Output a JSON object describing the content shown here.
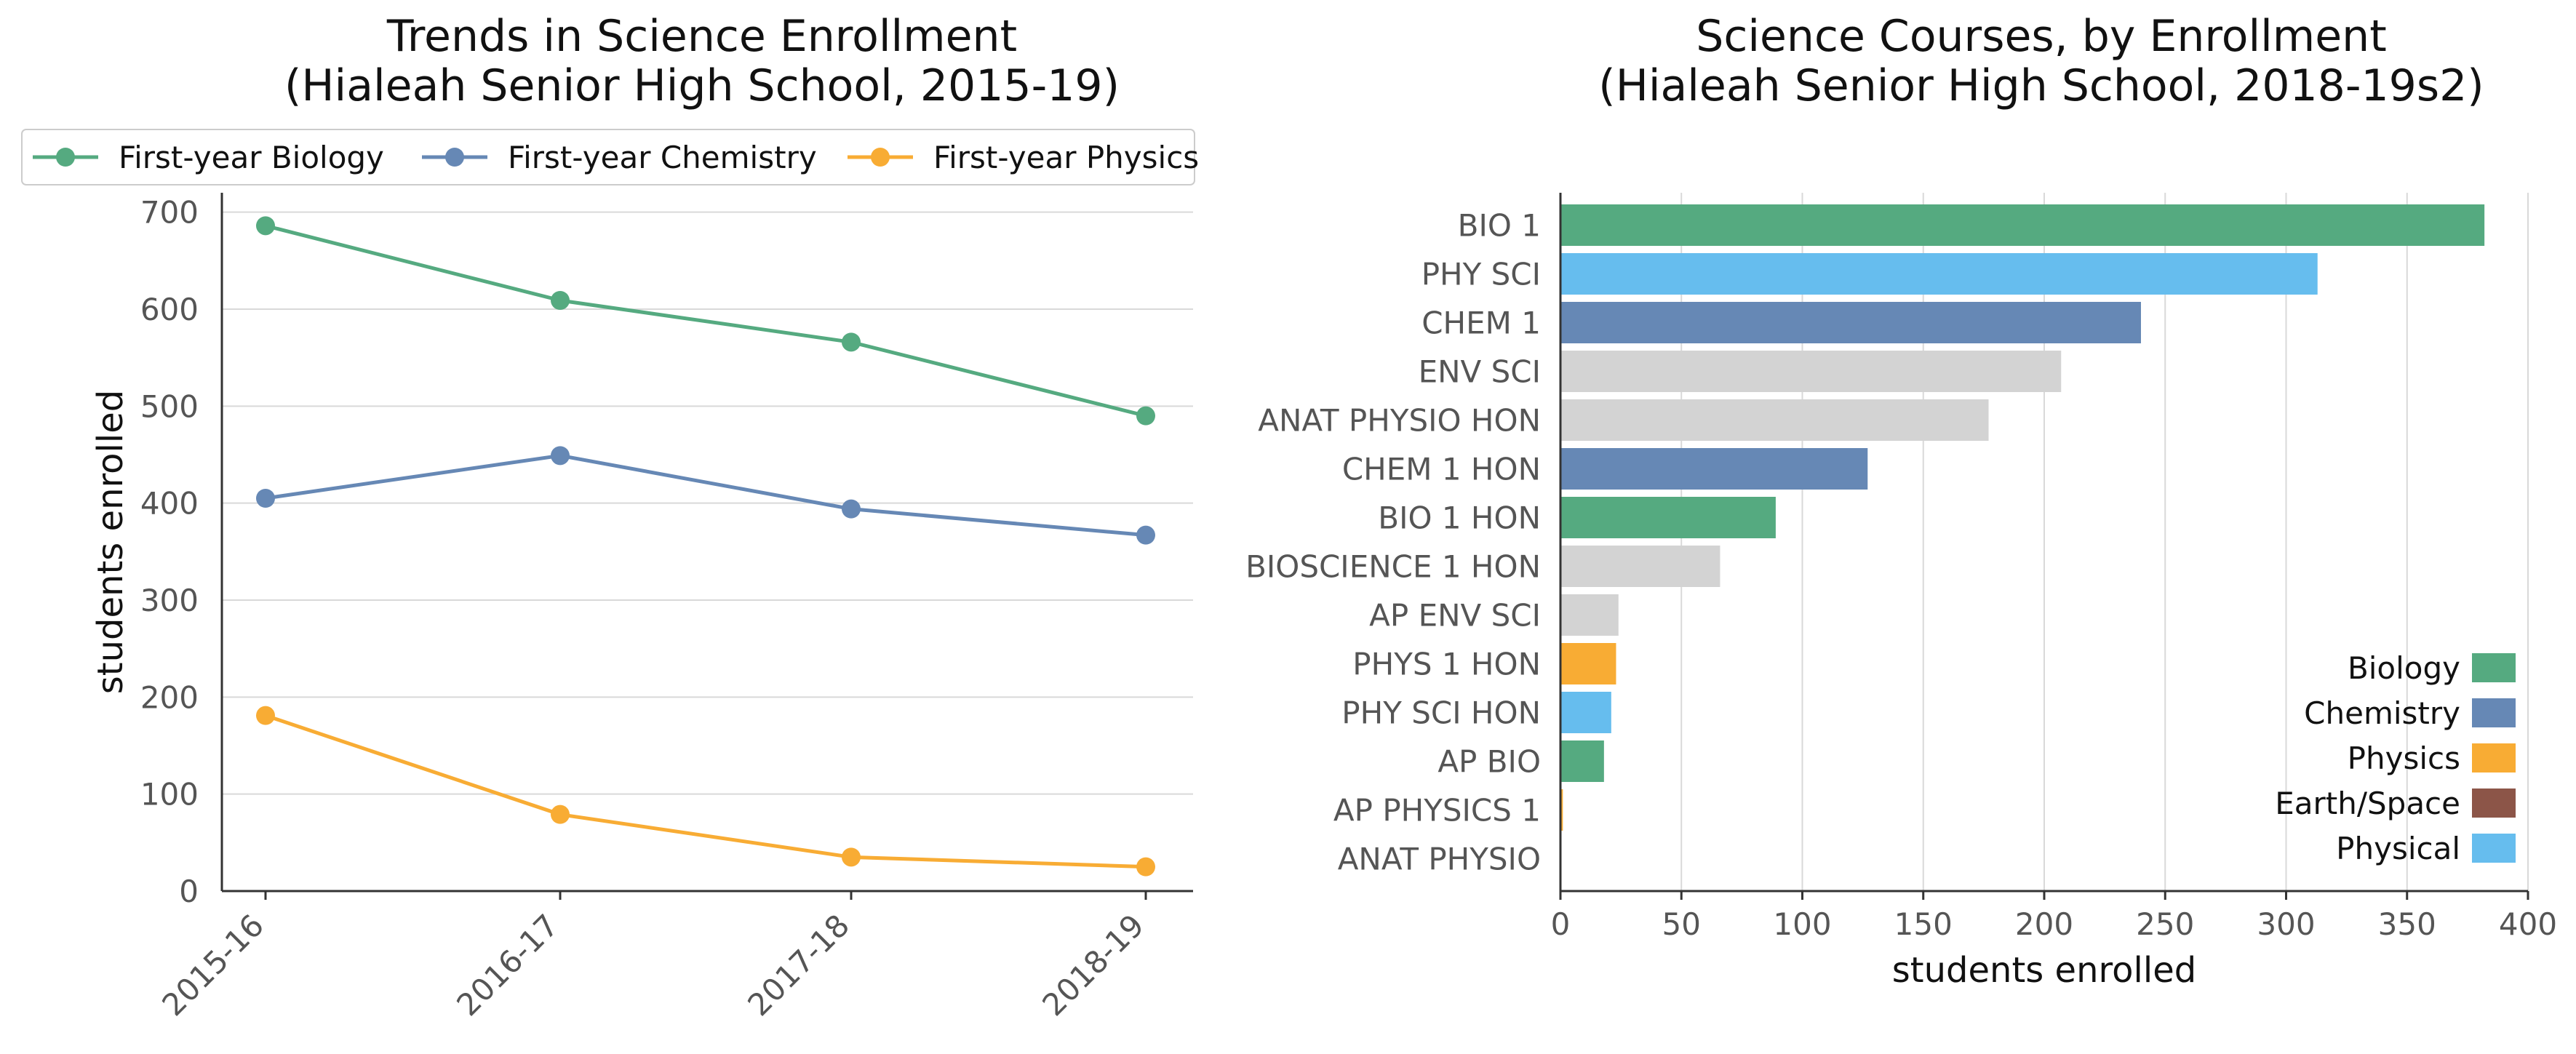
{
  "chart_data": [
    {
      "type": "line",
      "title": "Trends in Science Enrollment",
      "subtitle": "(Hialeah Senior High School, 2015-19)",
      "xlabel": "",
      "ylabel": "students enrolled",
      "categories": [
        "2015-16",
        "2016-17",
        "2017-18",
        "2018-19"
      ],
      "ylim": [
        0,
        720
      ],
      "yticks": [
        0,
        100,
        200,
        300,
        400,
        500,
        600,
        700
      ],
      "grid": "horizontal",
      "legend": "top",
      "series": [
        {
          "name": "First-year Biology",
          "color": "#55AA80",
          "values": [
            686,
            609,
            566,
            490
          ]
        },
        {
          "name": "First-year Chemistry",
          "color": "#6688B5",
          "values": [
            405,
            449,
            394,
            367
          ]
        },
        {
          "name": "First-year Physics",
          "color": "#F8AC34",
          "values": [
            181,
            79,
            35,
            25
          ]
        }
      ]
    },
    {
      "type": "bar",
      "orientation": "horizontal",
      "title": "Science Courses, by Enrollment",
      "subtitle": "(Hialeah Senior High School, 2018-19s2)",
      "xlabel": "students enrolled",
      "ylabel": "",
      "xlim": [
        0,
        400
      ],
      "xticks": [
        0,
        50,
        100,
        150,
        200,
        250,
        300,
        350,
        400
      ],
      "grid": "vertical",
      "legend": "bottom-right",
      "categories": [
        "BIO 1",
        "PHY SCI",
        "CHEM 1",
        "ENV SCI",
        "ANAT PHYSIO HON",
        "CHEM 1 HON",
        "BIO 1 HON",
        "BIOSCIENCE 1 HON",
        "AP ENV SCI",
        "PHYS 1 HON",
        "PHY SCI HON",
        "AP BIO",
        "AP PHYSICS 1",
        "ANAT PHYSIO"
      ],
      "values": [
        382,
        313,
        240,
        207,
        177,
        127,
        89,
        66,
        24,
        23,
        21,
        18,
        1,
        0
      ],
      "bar_groups": [
        "Biology",
        "Physical",
        "Chemistry",
        "",
        "",
        "Chemistry",
        "Biology",
        "",
        "",
        "Physics",
        "Physical",
        "Biology",
        "Physics",
        ""
      ],
      "legend_entries": [
        {
          "name": "Biology",
          "color": "#55AA80"
        },
        {
          "name": "Chemistry",
          "color": "#6688B5"
        },
        {
          "name": "Physics",
          "color": "#F8AC34"
        },
        {
          "name": "Earth/Space",
          "color": "#8C5548"
        },
        {
          "name": "Physical",
          "color": "#66BDEE"
        }
      ],
      "other_color": "#D3D3D3"
    }
  ]
}
